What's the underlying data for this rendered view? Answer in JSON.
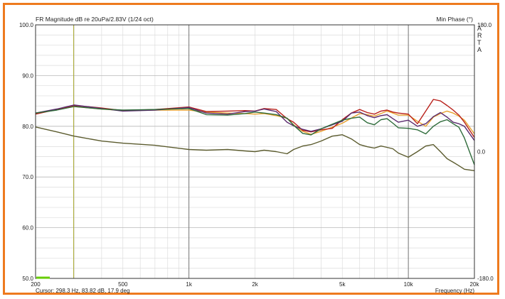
{
  "chart_data": {
    "type": "line",
    "title": "FR Magnitude dB re 20uPa/2.83V (1/24 oct)",
    "right_axis_title": "Min Phase (°)",
    "arta_label": [
      "A",
      "R",
      "T",
      "A"
    ],
    "xlabel": "Frequency (Hz)",
    "cursor_text": "Cursor: 298.3 Hz, 83.82 dB, 17.9 deg",
    "x_scale": "log",
    "xlim": [
      200,
      20000
    ],
    "ylim": [
      50,
      100
    ],
    "y2lim": [
      -180,
      180
    ],
    "grid": true,
    "x_ticks": [
      {
        "value": 200,
        "label": "200"
      },
      {
        "value": 500,
        "label": "500"
      },
      {
        "value": 1000,
        "label": "1k"
      },
      {
        "value": 2000,
        "label": "2k"
      },
      {
        "value": 5000,
        "label": "5k"
      },
      {
        "value": 10000,
        "label": "10k"
      },
      {
        "value": 20000,
        "label": "20k"
      }
    ],
    "y_ticks": [
      {
        "value": 100,
        "label": "100.0"
      },
      {
        "value": 90,
        "label": "90.0"
      },
      {
        "value": 80,
        "label": "80.0"
      },
      {
        "value": 70,
        "label": "70.0"
      },
      {
        "value": 60,
        "label": "60.0"
      },
      {
        "value": 50,
        "label": "50.0"
      }
    ],
    "y2_ticks": [
      {
        "value": 180,
        "label": "180.0"
      },
      {
        "value": 0,
        "label": "0.0"
      },
      {
        "value": -180,
        "label": "-180.0"
      }
    ],
    "cursor_x": 298.3,
    "colors": {
      "background": "#ffffff",
      "frame": "#ee7a1e",
      "grid_major": "#777777",
      "grid_minor": "#dcdcdc",
      "cursor": "#a9a930",
      "phase": "#5b5b2e"
    },
    "series": [
      {
        "color": "#e8a12e",
        "axis": "left",
        "x": [
          200,
          250,
          300,
          400,
          500,
          700,
          1000,
          1200,
          1500,
          1800,
          2000,
          2200,
          2500,
          2800,
          3000,
          3300,
          3600,
          4000,
          4500,
          5000,
          5500,
          6000,
          6500,
          7000,
          7500,
          8000,
          8500,
          9000,
          10000,
          11000,
          12000,
          13000,
          14000,
          15000,
          16000,
          17000,
          18000,
          20000
        ],
        "y": [
          82.5,
          83.3,
          83.9,
          83.4,
          83.1,
          83.2,
          83.2,
          82.8,
          82.6,
          82.5,
          82.4,
          82.5,
          82.1,
          81.6,
          80.3,
          79.0,
          78.4,
          79.0,
          79.8,
          80.6,
          81.6,
          82.5,
          82.3,
          82.0,
          82.5,
          83.0,
          82.6,
          82.2,
          82.2,
          81.0,
          80.0,
          81.8,
          82.5,
          83.0,
          82.6,
          82.0,
          81.2,
          78.5
        ]
      },
      {
        "color": "#b8201a",
        "axis": "left",
        "x": [
          200,
          250,
          300,
          400,
          500,
          700,
          1000,
          1200,
          1500,
          1800,
          2000,
          2200,
          2500,
          2800,
          3000,
          3300,
          3600,
          4000,
          4500,
          5000,
          5500,
          6000,
          6500,
          7000,
          7500,
          8000,
          8500,
          9000,
          10000,
          11000,
          12000,
          13000,
          14000,
          15000,
          16000,
          17000,
          18000,
          20000
        ],
        "y": [
          82.4,
          83.3,
          84.1,
          83.6,
          83.1,
          83.3,
          83.8,
          82.9,
          83.0,
          83.1,
          83.0,
          83.5,
          83.3,
          81.5,
          80.8,
          79.2,
          78.9,
          79.3,
          79.6,
          81.3,
          82.6,
          83.3,
          82.7,
          82.4,
          83.0,
          83.2,
          82.8,
          82.6,
          82.4,
          80.5,
          83.0,
          85.3,
          85.0,
          84.1,
          83.2,
          82.2,
          80.8,
          77.8
        ]
      },
      {
        "color": "#5b2a6e",
        "axis": "left",
        "x": [
          200,
          250,
          300,
          400,
          500,
          700,
          1000,
          1200,
          1500,
          1800,
          2000,
          2200,
          2500,
          2800,
          3000,
          3300,
          3600,
          4000,
          4500,
          5000,
          5500,
          6000,
          6500,
          7000,
          7500,
          8000,
          8500,
          9000,
          10000,
          11000,
          12000,
          13000,
          14000,
          15000,
          16000,
          17000,
          18000,
          20000
        ],
        "y": [
          82.6,
          83.4,
          84.2,
          83.5,
          83.0,
          83.2,
          83.7,
          82.6,
          82.4,
          82.9,
          83.0,
          83.4,
          82.9,
          80.8,
          80.1,
          79.4,
          79.0,
          79.5,
          80.3,
          81.0,
          82.6,
          82.8,
          82.1,
          81.7,
          82.1,
          82.3,
          81.5,
          80.8,
          81.2,
          80.0,
          80.5,
          81.9,
          82.7,
          81.8,
          80.8,
          80.5,
          80.0,
          77.2
        ]
      },
      {
        "color": "#2e6b3a",
        "axis": "left",
        "x": [
          200,
          250,
          300,
          400,
          500,
          700,
          1000,
          1200,
          1500,
          1800,
          2000,
          2200,
          2500,
          2800,
          3000,
          3300,
          3600,
          4000,
          4500,
          5000,
          5500,
          6000,
          6500,
          7000,
          7500,
          8000,
          8500,
          9000,
          10000,
          11000,
          12000,
          13000,
          14000,
          15000,
          16000,
          17000,
          18000,
          20000
        ],
        "y": [
          82.6,
          83.2,
          83.9,
          83.4,
          83.2,
          83.3,
          83.5,
          82.3,
          82.2,
          82.5,
          82.8,
          82.6,
          82.3,
          81.6,
          80.2,
          78.6,
          78.3,
          79.5,
          80.4,
          81.2,
          81.6,
          81.8,
          80.7,
          80.3,
          81.3,
          81.5,
          80.6,
          79.7,
          79.6,
          79.3,
          78.5,
          80.0,
          80.9,
          81.3,
          80.5,
          79.8,
          77.7,
          72.4
        ]
      },
      {
        "color": "#5b5b2e",
        "axis": "right",
        "x": [
          200,
          250,
          300,
          400,
          500,
          700,
          1000,
          1200,
          1500,
          1800,
          2000,
          2200,
          2500,
          2800,
          3000,
          3300,
          3600,
          4000,
          4500,
          5000,
          5500,
          6000,
          6500,
          7000,
          7500,
          8000,
          8500,
          9000,
          10000,
          11000,
          12000,
          13000,
          14000,
          15000,
          16000,
          17000,
          18000,
          20000
        ],
        "y": [
          35,
          28,
          22,
          15,
          12,
          9,
          3,
          2,
          3,
          1,
          0,
          2,
          0,
          -3,
          3,
          8,
          10,
          15,
          22,
          24,
          18,
          10,
          7,
          5,
          8,
          6,
          4,
          -2,
          -8,
          0,
          8,
          10,
          0,
          -10,
          -15,
          -20,
          -25,
          -27
        ]
      }
    ],
    "legend_swatch_color": "#66cc00"
  }
}
